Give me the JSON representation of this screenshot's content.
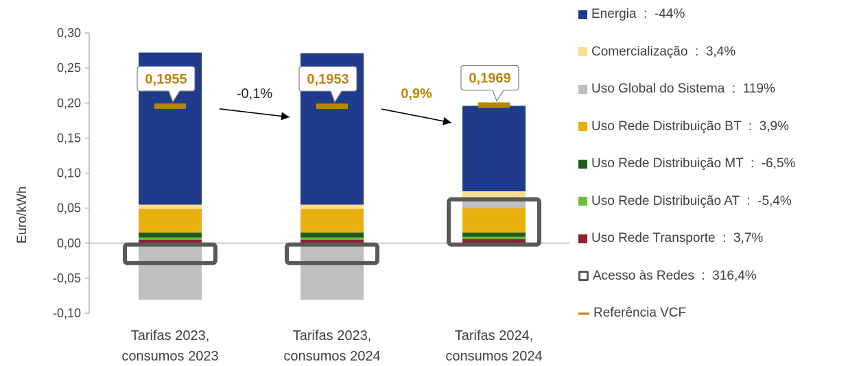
{
  "chart_data": {
    "type": "bar",
    "stacked": true,
    "ylabel": "Euro/kWh",
    "ylim": [
      -0.1,
      0.3
    ],
    "yticks": [
      "-0,10",
      "-0,05",
      "0,00",
      "0,05",
      "0,10",
      "0,15",
      "0,20",
      "0,25",
      "0,30"
    ],
    "ytick_values": [
      -0.1,
      -0.05,
      0.0,
      0.05,
      0.1,
      0.15,
      0.2,
      0.25,
      0.3
    ],
    "grid": false,
    "legend_position": "right",
    "categories": [
      [
        "Tarifas 2023,",
        "consumos 2023"
      ],
      [
        "Tarifas 2023,",
        "consumos 2024"
      ],
      [
        "Tarifas 2024,",
        "consumos 2024"
      ]
    ],
    "series": [
      {
        "name": "Uso Rede Transporte",
        "change": "3,7%",
        "color": "#8B2332",
        "values": [
          0.005,
          0.005,
          0.006
        ]
      },
      {
        "name": "Uso Rede Distribuição AT",
        "change": "-5,4%",
        "color": "#6BBF3A",
        "values": [
          0.003,
          0.003,
          0.003
        ]
      },
      {
        "name": "Uso Rede Distribuição MT",
        "change": "-6,5%",
        "color": "#1E5C1E",
        "values": [
          0.007,
          0.007,
          0.006
        ]
      },
      {
        "name": "Uso Rede Distribuição BT",
        "change": "3,9%",
        "color": "#E8B00F",
        "values": [
          0.034,
          0.034,
          0.035
        ]
      },
      {
        "name": "Uso Global do Sistema",
        "change": "119%",
        "color": "#BFBFBF",
        "values": [
          -0.081,
          -0.081,
          0.012
        ]
      },
      {
        "name": "Comercialização",
        "change": "3,4%",
        "color": "#F8DE8E",
        "values": [
          0.006,
          0.006,
          0.012
        ]
      },
      {
        "name": "Energia",
        "change": "-44%",
        "color": "#1F3B8C",
        "values": [
          0.217,
          0.216,
          0.122
        ]
      }
    ],
    "access_boxes": {
      "name": "Acesso às Redes",
      "change": "316,4%",
      "values": [
        -0.0285,
        -0.0285,
        0.0625
      ]
    },
    "reference_vcf": {
      "name": "Referência VCF",
      "values": [
        0.1955,
        0.1953,
        0.1969
      ],
      "labels": [
        "0,1955",
        "0,1953",
        "0,1969"
      ],
      "color": "#B8860B"
    },
    "changes": [
      {
        "from": 0,
        "to": 1,
        "label": "-0,1%",
        "color": "#262626"
      },
      {
        "from": 1,
        "to": 2,
        "label": "0,9%",
        "color": "#B8860B"
      }
    ]
  },
  "legend": [
    {
      "label": "Energia",
      "value": "-44%",
      "kind": "swatch",
      "color": "#1F3B8C"
    },
    {
      "label": "Comercialização",
      "value": "3,4%",
      "kind": "swatch",
      "color": "#F8DE8E"
    },
    {
      "label": "Uso Global do Sistema",
      "value": "119%",
      "kind": "swatch",
      "color": "#BFBFBF"
    },
    {
      "label": "Uso Rede Distribuição BT",
      "value": "3,9%",
      "kind": "swatch",
      "color": "#E8B00F"
    },
    {
      "label": "Uso Rede Distribuição MT",
      "value": "-6,5%",
      "kind": "swatch",
      "color": "#1E5C1E"
    },
    {
      "label": "Uso Rede Distribuição AT",
      "value": "-5,4%",
      "kind": "swatch",
      "color": "#6BBF3A"
    },
    {
      "label": "Uso Rede Transporte",
      "value": "3,7%",
      "kind": "swatch",
      "color": "#8B2332"
    },
    {
      "label": "Acesso às Redes",
      "value": "316,4%",
      "kind": "box",
      "color": "#595959"
    },
    {
      "label": "Referência VCF",
      "value": "",
      "kind": "dash",
      "color": "#B8860B"
    }
  ]
}
